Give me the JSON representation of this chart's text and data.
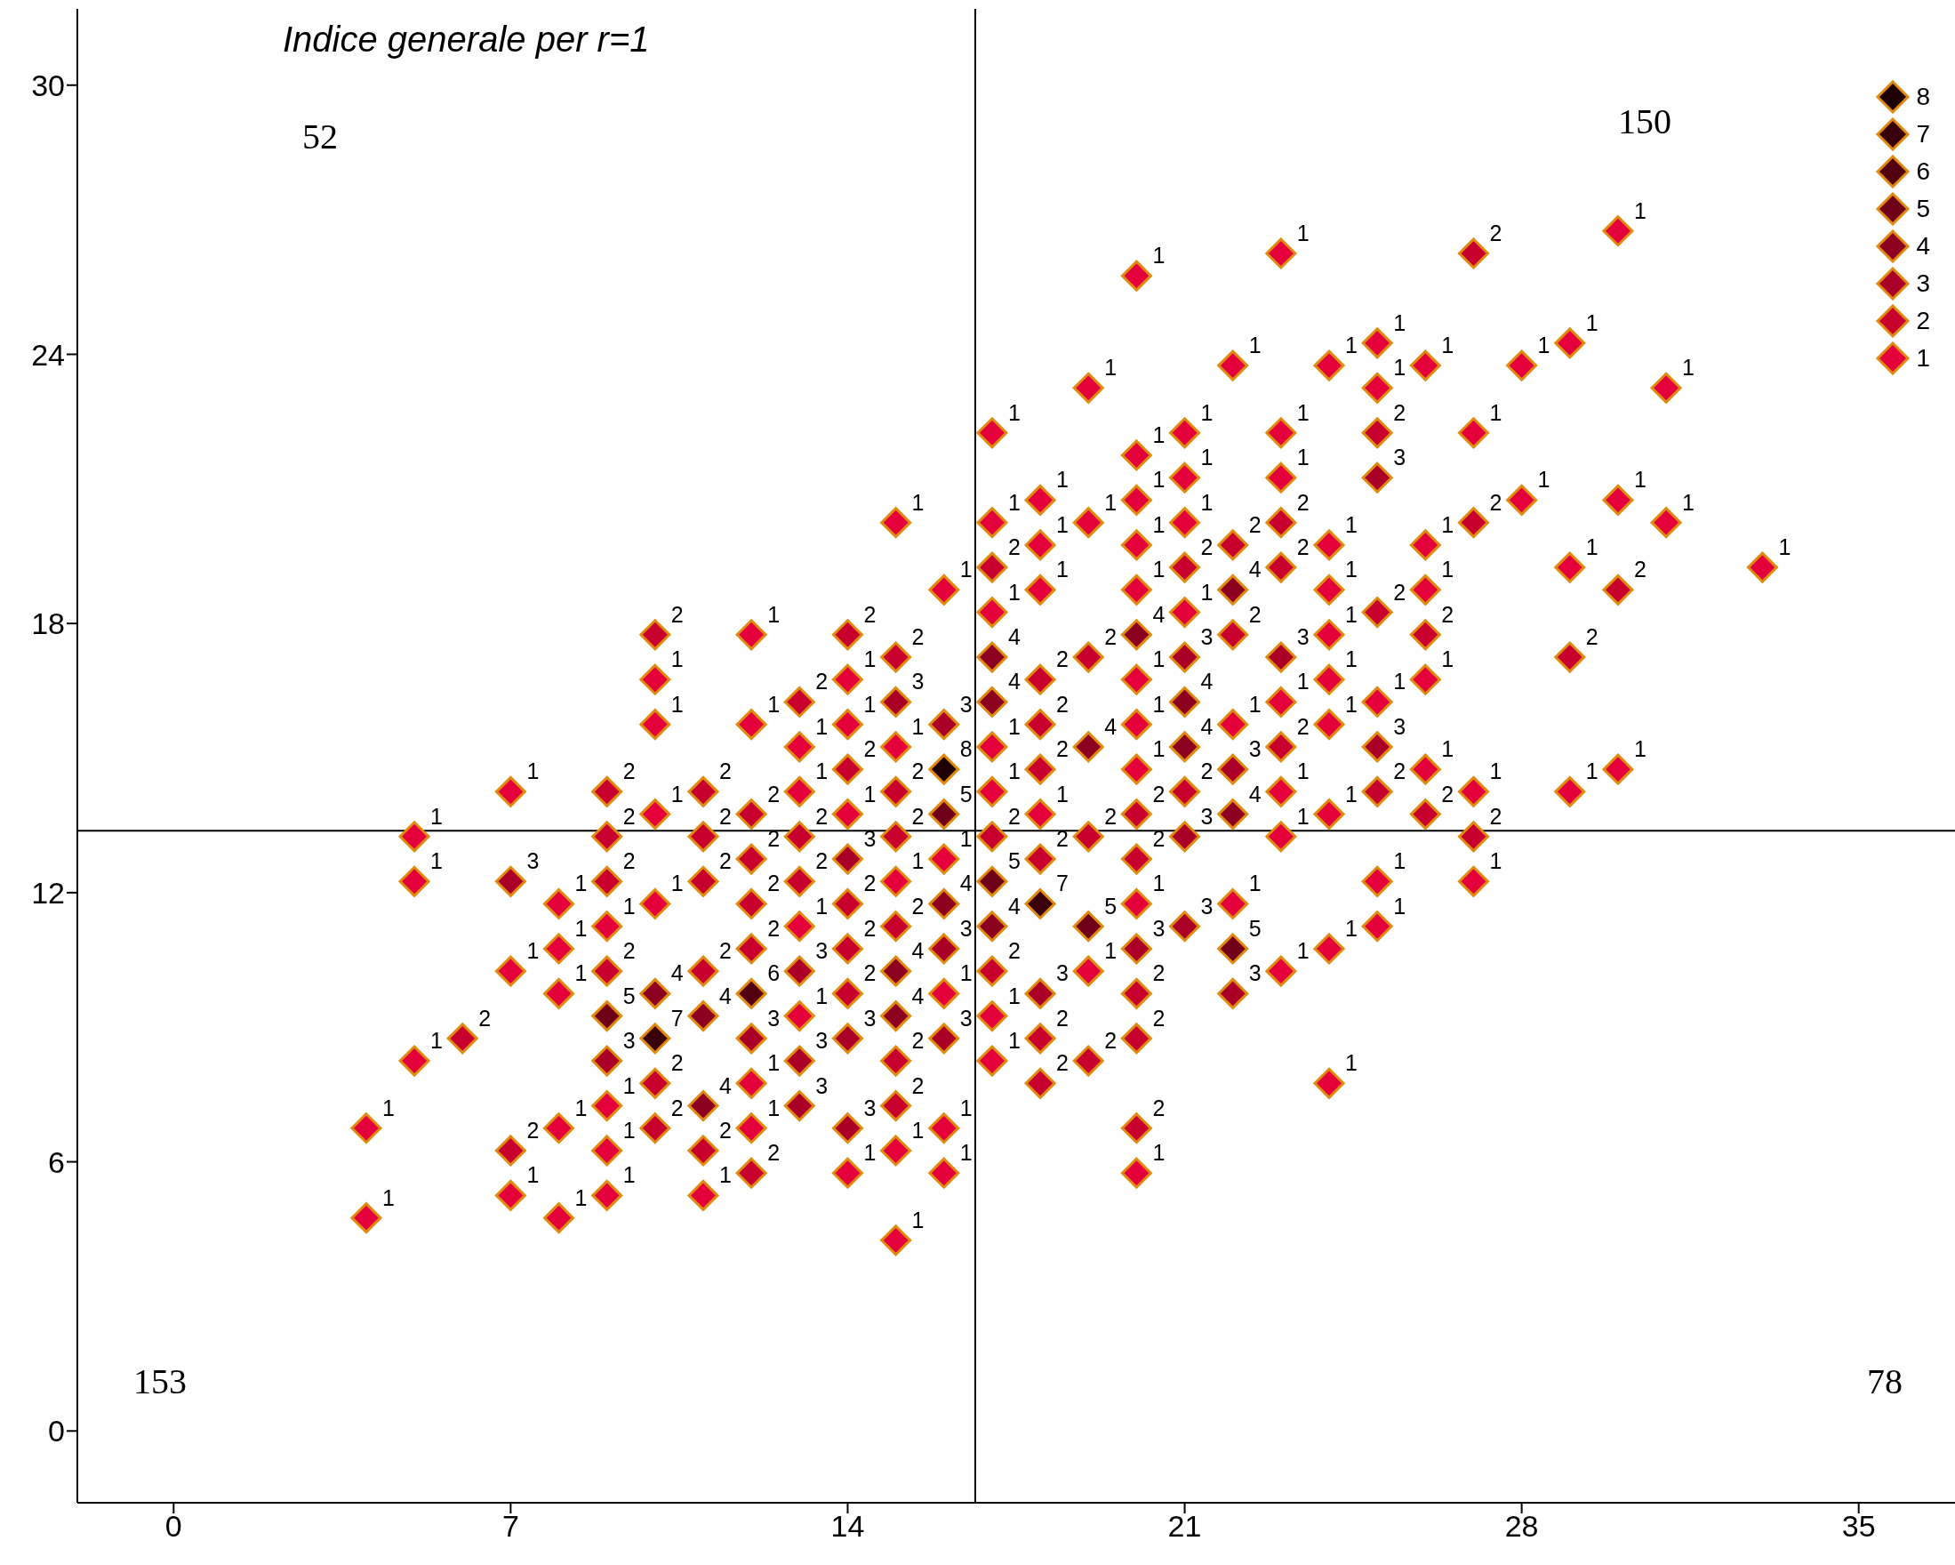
{
  "chart_data": {
    "type": "scatter",
    "title": "Indice generale per r=1",
    "marker": "diamond",
    "legend": "top right",
    "grid": false,
    "xlim": [
      -2,
      37
    ],
    "xticks": [
      0,
      7,
      14,
      21,
      28,
      35
    ],
    "ylim": [
      -1.6,
      31.7
    ],
    "yticks": [
      0,
      6,
      12,
      18,
      24,
      30
    ],
    "ref_lines": [
      {
        "axis": "x",
        "value": 16.65,
        "color": "#000000"
      },
      {
        "axis": "y",
        "value": 13.38,
        "color": "#000000"
      }
    ],
    "annotations": [
      "52",
      "150",
      "153",
      "78"
    ],
    "series": [
      {
        "name": "1",
        "color": "#e4003a",
        "x": [
          4,
          4,
          5,
          5,
          5,
          7,
          7,
          7,
          8,
          8,
          8,
          8,
          8,
          9,
          9,
          9,
          9,
          10,
          10,
          10,
          10,
          11,
          12,
          12,
          12,
          12,
          13,
          13,
          13,
          13,
          14,
          14,
          14,
          14,
          15,
          15,
          15,
          15,
          15,
          16,
          16,
          16,
          16,
          16,
          17,
          17,
          17,
          17,
          17,
          17,
          17,
          18,
          18,
          18,
          18,
          19,
          19,
          19,
          20,
          20,
          20,
          20,
          20,
          20,
          20,
          20,
          20,
          20,
          21,
          21,
          21,
          21,
          22,
          22,
          22,
          23,
          23,
          23,
          23,
          23,
          23,
          23,
          24,
          24,
          24,
          24,
          24,
          24,
          24,
          24,
          24,
          25,
          25,
          25,
          25,
          25,
          26,
          26,
          26,
          26,
          26,
          27,
          27,
          27,
          28,
          28,
          29,
          29,
          29,
          30,
          30,
          30,
          31,
          31,
          33
        ],
        "values": [
          6.75,
          4.75,
          13.25,
          12.25,
          8.25,
          14.25,
          10.25,
          5.25,
          11.75,
          10.75,
          9.75,
          6.75,
          4.75,
          11.25,
          7.25,
          6.25,
          5.25,
          16.75,
          15.75,
          13.75,
          11.75,
          5.25,
          17.75,
          15.75,
          7.75,
          6.75,
          15.25,
          14.25,
          11.25,
          9.25,
          16.75,
          15.75,
          13.75,
          5.75,
          20.25,
          15.25,
          12.25,
          6.25,
          4.25,
          18.75,
          12.75,
          9.75,
          6.75,
          5.75,
          22.25,
          20.25,
          18.25,
          15.25,
          14.25,
          9.25,
          8.25,
          20.75,
          19.75,
          18.75,
          13.75,
          23.25,
          20.25,
          10.25,
          25.75,
          21.75,
          20.75,
          19.75,
          18.75,
          16.75,
          15.75,
          14.75,
          11.75,
          5.75,
          22.25,
          21.25,
          20.25,
          18.25,
          23.75,
          15.75,
          11.75,
          26.25,
          22.25,
          21.25,
          16.25,
          14.25,
          13.25,
          10.25,
          23.75,
          19.75,
          18.75,
          17.75,
          16.75,
          15.75,
          13.75,
          10.75,
          7.75,
          24.25,
          23.25,
          16.25,
          12.25,
          11.25,
          23.75,
          19.75,
          18.75,
          16.75,
          14.75,
          22.25,
          14.25,
          12.25,
          23.75,
          20.75,
          24.25,
          19.25,
          14.25,
          26.75,
          20.75,
          14.75,
          23.25,
          20.25,
          19.25
        ]
      },
      {
        "name": "2",
        "color": "#c8002e",
        "x": [
          6,
          7,
          9,
          9,
          9,
          9,
          10,
          10,
          10,
          11,
          11,
          11,
          11,
          11,
          12,
          12,
          12,
          12,
          12,
          13,
          13,
          13,
          14,
          14,
          14,
          14,
          14,
          15,
          15,
          15,
          15,
          15,
          15,
          17,
          17,
          17,
          18,
          18,
          18,
          18,
          18,
          18,
          19,
          19,
          19,
          20,
          20,
          20,
          20,
          20,
          21,
          21,
          22,
          22,
          23,
          23,
          23,
          25,
          25,
          25,
          26,
          26,
          27,
          27,
          27,
          29,
          30
        ],
        "values": [
          8.75,
          6.25,
          14.25,
          13.25,
          12.25,
          10.25,
          17.75,
          7.75,
          6.75,
          14.25,
          13.25,
          12.25,
          10.25,
          6.25,
          13.75,
          12.75,
          11.75,
          10.75,
          5.75,
          16.25,
          13.25,
          12.25,
          17.75,
          14.75,
          11.75,
          10.75,
          9.75,
          17.25,
          14.25,
          13.25,
          11.25,
          8.25,
          7.25,
          19.25,
          13.25,
          10.25,
          16.75,
          15.75,
          14.75,
          12.75,
          8.75,
          7.75,
          17.25,
          13.25,
          8.25,
          13.75,
          12.75,
          9.75,
          8.75,
          6.75,
          19.25,
          14.25,
          19.75,
          17.75,
          20.25,
          19.25,
          15.25,
          22.25,
          18.25,
          14.25,
          17.75,
          13.75,
          26.25,
          20.25,
          13.25,
          17.25,
          18.75
        ]
      },
      {
        "name": "3",
        "color": "#aa0028",
        "x": [
          7,
          9,
          12,
          13,
          13,
          13,
          14,
          14,
          14,
          15,
          16,
          16,
          16,
          18,
          20,
          21,
          21,
          21,
          22,
          22,
          23,
          25,
          25
        ],
        "values": [
          12.25,
          8.25,
          8.75,
          10.25,
          8.25,
          7.25,
          12.75,
          8.75,
          6.75,
          16.25,
          15.75,
          10.75,
          8.75,
          9.75,
          10.75,
          17.25,
          13.25,
          11.25,
          14.75,
          9.75,
          17.25,
          21.25,
          15.25
        ]
      },
      {
        "name": "4",
        "color": "#8c0020",
        "x": [
          10,
          11,
          11,
          15,
          15,
          16,
          17,
          17,
          17,
          19,
          20,
          21,
          21,
          22,
          22
        ],
        "values": [
          9.75,
          9.25,
          7.25,
          10.25,
          9.25,
          11.75,
          17.25,
          16.25,
          11.25,
          15.25,
          17.75,
          16.25,
          15.25,
          18.75,
          13.75
        ]
      },
      {
        "name": "5",
        "color": "#6e0018",
        "x": [
          9,
          16,
          17,
          19,
          22
        ],
        "values": [
          9.25,
          13.75,
          12.25,
          11.25,
          10.75
        ]
      },
      {
        "name": "6",
        "color": "#520010",
        "x": [
          12
        ],
        "values": [
          9.75
        ]
      },
      {
        "name": "7",
        "color": "#380008",
        "x": [
          10,
          18
        ],
        "values": [
          8.75,
          11.75
        ]
      },
      {
        "name": "8",
        "color": "#1e0004",
        "x": [
          16
        ],
        "values": [
          14.75
        ]
      }
    ]
  }
}
